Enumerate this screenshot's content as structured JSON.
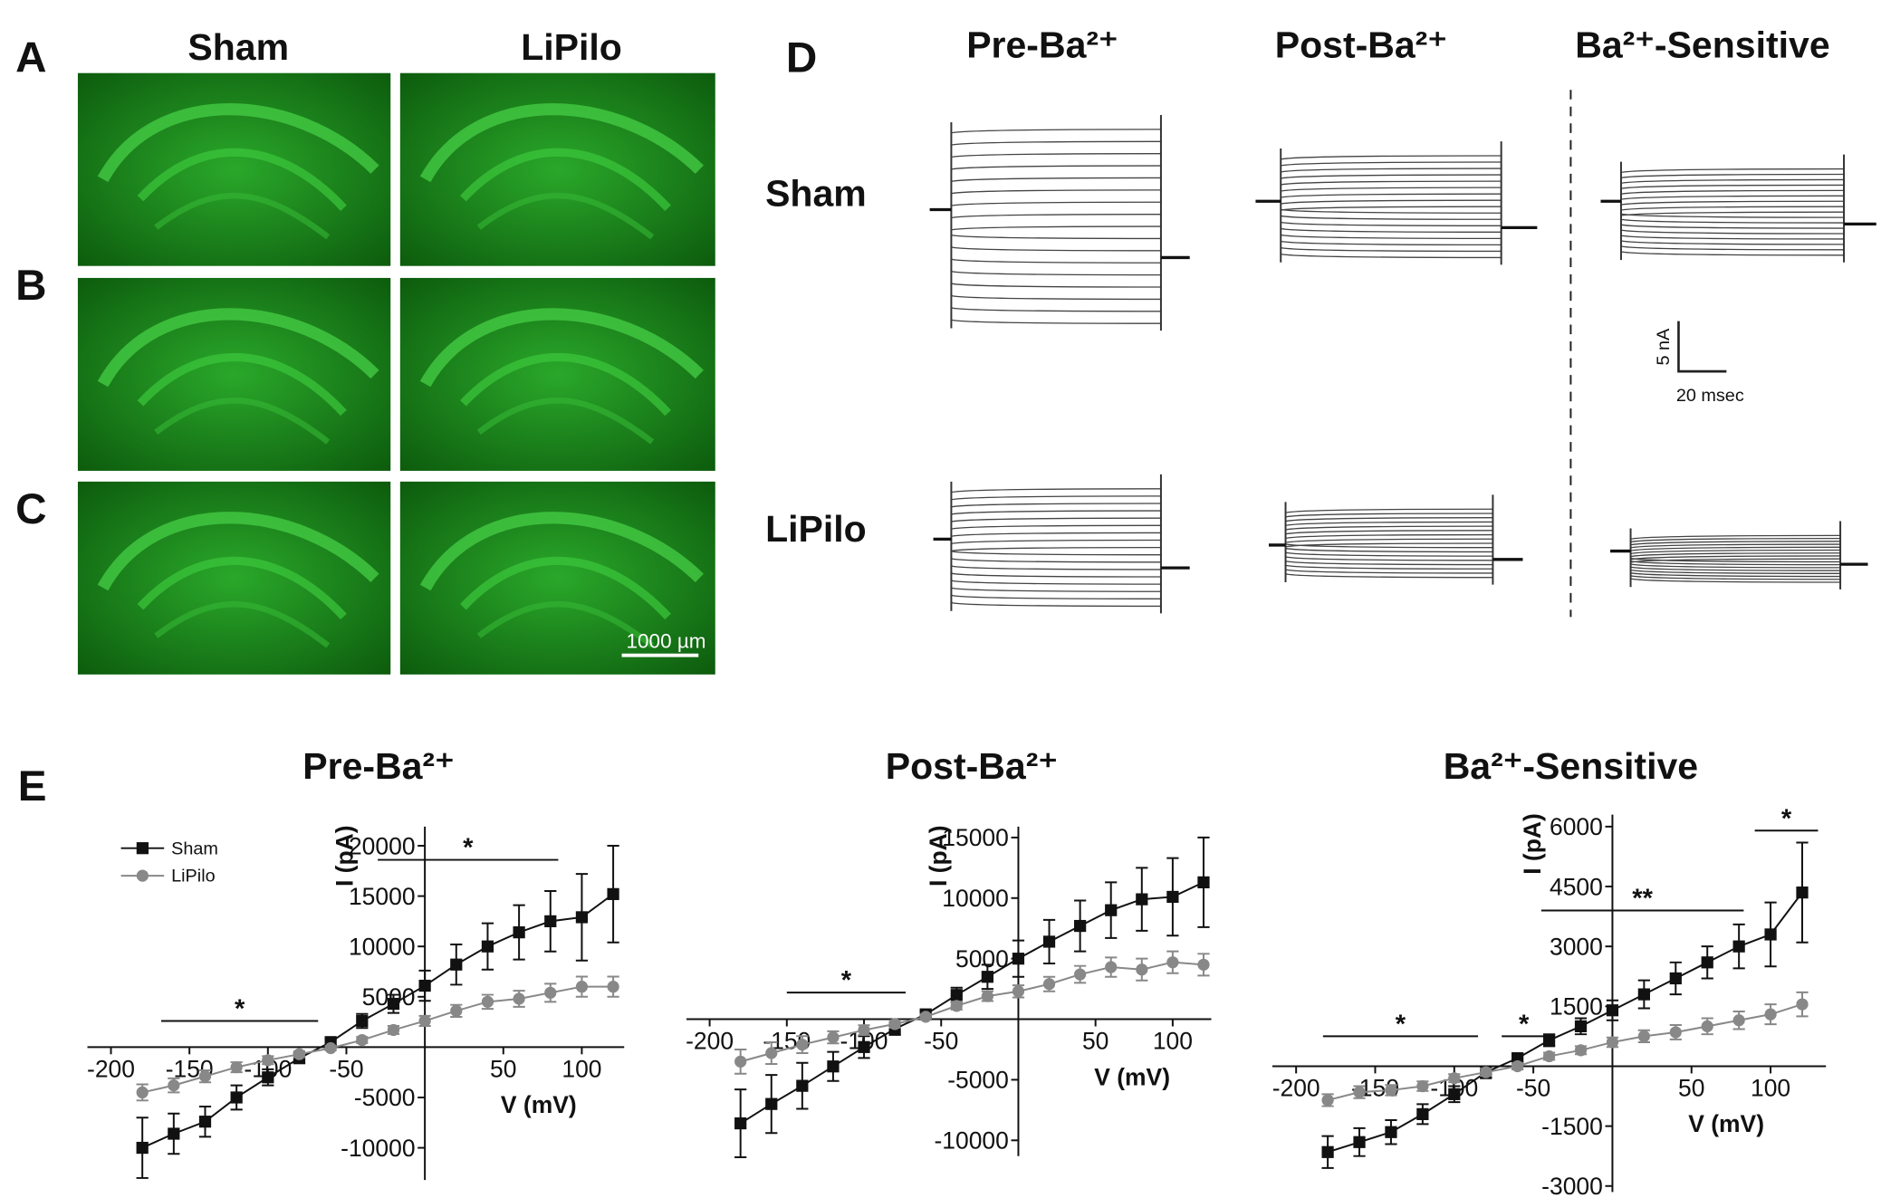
{
  "figure_a": {
    "labels": [
      "A",
      "B",
      "C"
    ],
    "columns": [
      "Sham",
      "LiPilo"
    ],
    "scale_bar": "1000 µm"
  },
  "figure_d": {
    "label": "D",
    "columns": [
      "Pre-Ba²⁺",
      "Post-Ba²⁺",
      "Ba²⁺-Sensitive"
    ],
    "rows": [
      "Sham",
      "LiPilo"
    ],
    "scale_current": "5 nA",
    "scale_time": "20 msec"
  },
  "figure_e": {
    "label": "E"
  },
  "chart_data": [
    {
      "type": "line",
      "title": "Pre-Ba²⁺",
      "x_label": "V (mV)",
      "y_label": "I (pA)",
      "x": [
        -180,
        -160,
        -140,
        -120,
        -100,
        -80,
        -60,
        -40,
        -20,
        0,
        20,
        40,
        60,
        80,
        100,
        120
      ],
      "series": [
        {
          "name": "Sham",
          "color": "#111111",
          "marker": "square",
          "values": [
            -10000,
            -8600,
            -7400,
            -5000,
            -3000,
            -1100,
            500,
            2600,
            4300,
            6100,
            8200,
            10000,
            11400,
            12500,
            12900,
            15200
          ],
          "errors": [
            3000,
            2000,
            1500,
            1200,
            800,
            500,
            300,
            700,
            900,
            1500,
            2000,
            2300,
            2700,
            3000,
            4300,
            4800
          ]
        },
        {
          "name": "LiPilo",
          "color": "#888888",
          "marker": "circle",
          "values": [
            -4500,
            -3800,
            -2900,
            -2000,
            -1300,
            -700,
            -100,
            700,
            1700,
            2600,
            3600,
            4500,
            4800,
            5400,
            6000,
            6000
          ],
          "errors": [
            800,
            700,
            600,
            500,
            400,
            300,
            200,
            300,
            400,
            500,
            600,
            700,
            800,
            900,
            1000,
            1000
          ]
        }
      ],
      "xlim": [
        -215,
        127
      ],
      "ylim": [
        -13200,
        21900
      ],
      "xticks": [
        -200,
        -150,
        -100,
        -50,
        50,
        100
      ],
      "yticks": [
        -10000,
        -5000,
        5000,
        10000,
        15000,
        20000
      ],
      "legend": "upper left",
      "annotations": [
        {
          "text": "*",
          "x": [
            -168,
            -68
          ],
          "y": 2600
        },
        {
          "text": "*",
          "x": [
            -30,
            85
          ],
          "y": 18600
        }
      ]
    },
    {
      "type": "line",
      "title": "Post-Ba²⁺",
      "x_label": "V (mV)",
      "y_label": "I (pA)",
      "x": [
        -180,
        -160,
        -140,
        -120,
        -100,
        -80,
        -60,
        -40,
        -20,
        0,
        20,
        40,
        60,
        80,
        100,
        120
      ],
      "series": [
        {
          "name": "Sham",
          "color": "#111111",
          "marker": "square",
          "values": [
            -8600,
            -7000,
            -5500,
            -3900,
            -2300,
            -800,
            400,
            2000,
            3500,
            5000,
            6400,
            7700,
            9000,
            9900,
            10100,
            11300
          ],
          "errors": [
            2800,
            2400,
            1900,
            1200,
            900,
            500,
            300,
            600,
            1000,
            1500,
            1800,
            2100,
            2300,
            2600,
            3200,
            3700
          ]
        },
        {
          "name": "LiPilo",
          "color": "#888888",
          "marker": "circle",
          "values": [
            -3500,
            -2800,
            -2100,
            -1500,
            -900,
            -400,
            200,
            1100,
            1900,
            2300,
            2900,
            3700,
            4300,
            4100,
            4700,
            4500
          ],
          "errors": [
            1000,
            900,
            700,
            500,
            400,
            300,
            200,
            300,
            400,
            500,
            600,
            700,
            800,
            900,
            900,
            900
          ]
        }
      ],
      "xlim": [
        -215,
        125
      ],
      "ylim": [
        -11300,
        15900
      ],
      "xticks": [
        -200,
        -150,
        -100,
        -50,
        50,
        100
      ],
      "yticks": [
        -10000,
        -5000,
        5000,
        10000,
        15000
      ],
      "annotations": [
        {
          "text": "*",
          "x": [
            -150,
            -73
          ],
          "y": 2200
        }
      ]
    },
    {
      "type": "line",
      "title": "Ba²⁺-Sensitive",
      "x_label": "V (mV)",
      "y_label": "I (pA)",
      "x": [
        -180,
        -160,
        -140,
        -120,
        -100,
        -80,
        -60,
        -40,
        -20,
        0,
        20,
        40,
        60,
        80,
        100,
        120
      ],
      "series": [
        {
          "name": "Sham",
          "color": "#111111",
          "marker": "square",
          "values": [
            -2150,
            -1900,
            -1650,
            -1200,
            -700,
            -150,
            200,
            650,
            1000,
            1400,
            1800,
            2200,
            2600,
            3000,
            3300,
            4350
          ],
          "errors": [
            400,
            350,
            300,
            250,
            200,
            150,
            100,
            150,
            200,
            250,
            350,
            400,
            400,
            550,
            800,
            1250
          ]
        },
        {
          "name": "LiPilo",
          "color": "#888888",
          "marker": "circle",
          "values": [
            -850,
            -650,
            -600,
            -500,
            -300,
            -150,
            0,
            250,
            400,
            600,
            750,
            850,
            1000,
            1150,
            1300,
            1550
          ],
          "errors": [
            150,
            150,
            130,
            120,
            100,
            90,
            80,
            90,
            100,
            120,
            150,
            180,
            200,
            220,
            250,
            300
          ]
        }
      ],
      "xlim": [
        -215,
        135
      ],
      "ylim": [
        -3150,
        6300
      ],
      "xticks": [
        -200,
        -150,
        -100,
        -50,
        50,
        100
      ],
      "yticks": [
        -3000,
        -1500,
        1500,
        3000,
        4500,
        6000
      ],
      "annotations": [
        {
          "text": "*",
          "x": [
            -183,
            -85
          ],
          "y": 750
        },
        {
          "text": "*",
          "x": [
            -70,
            -42
          ],
          "y": 750
        },
        {
          "text": "**",
          "x": [
            -45,
            83
          ],
          "y": 3900
        },
        {
          "text": "*",
          "x": [
            90,
            130
          ],
          "y": 5900
        }
      ]
    }
  ]
}
